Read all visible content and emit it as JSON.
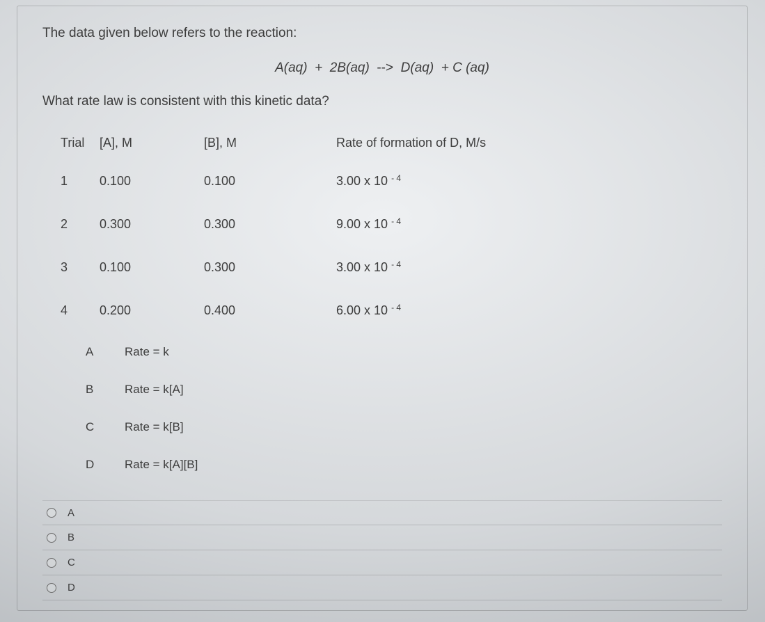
{
  "intro": "The data given below refers to the reaction:",
  "equation_html": "A(aq)&nbsp;&nbsp;+&nbsp;&nbsp;2B(aq)&nbsp;&nbsp;<span class='arrow'>--&gt;</span>&nbsp;&nbsp;D(aq)&nbsp;&nbsp;+&nbsp;C (aq)",
  "question": "What rate law is consistent with this kinetic data?",
  "table": {
    "headers": {
      "trial": "Trial",
      "a": "[A], M",
      "b": "[B], M",
      "rate": "Rate of formation of D, M/s"
    },
    "rows": [
      {
        "trial": "1",
        "a": "0.100",
        "b": "0.100",
        "rate_html": "3.00 x 10 <span class='sup'>- 4</span>"
      },
      {
        "trial": "2",
        "a": "0.300",
        "b": "0.300",
        "rate_html": "9.00 x 10 <span class='sup'>- 4</span>"
      },
      {
        "trial": "3",
        "a": "0.100",
        "b": "0.300",
        "rate_html": "3.00 x 10 <span class='sup'>- 4</span>"
      },
      {
        "trial": "4",
        "a": "0.200",
        "b": "0.400",
        "rate_html": "6.00 x 10 <span class='sup'>- 4</span>"
      }
    ]
  },
  "options": [
    {
      "letter": "A",
      "text": "Rate = k"
    },
    {
      "letter": "B",
      "text": "Rate = k[A]"
    },
    {
      "letter": "C",
      "text": "Rate = k[B]"
    },
    {
      "letter": "D",
      "text": "Rate = k[A][B]"
    }
  ],
  "answers": [
    "A",
    "B",
    "C",
    "D"
  ]
}
